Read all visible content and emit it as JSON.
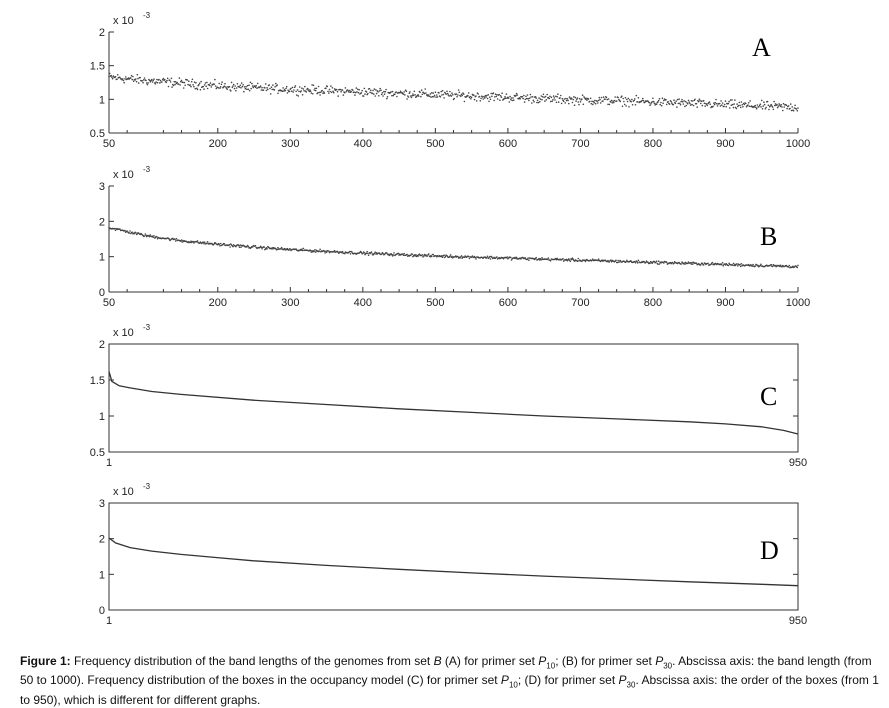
{
  "chart_data": [
    {
      "type": "scatter",
      "panel_label": "A",
      "exponent_label": "x 10",
      "exponent_power": "-3",
      "xlim": [
        50,
        1000
      ],
      "ylim": [
        0.5,
        2
      ],
      "x_tick_labels": [
        "50",
        "200",
        "300",
        "400",
        "500",
        "600",
        "700",
        "800",
        "900",
        "1000"
      ],
      "y_tick_labels": [
        "0.5",
        "1",
        "1.5",
        "2"
      ],
      "series": [
        {
          "x": [
            50,
            100,
            150,
            200,
            250,
            300,
            350,
            400,
            450,
            500,
            550,
            600,
            650,
            700,
            750,
            800,
            850,
            900,
            950,
            1000
          ],
          "values": [
            1.33,
            1.28,
            1.24,
            1.2,
            1.17,
            1.15,
            1.13,
            1.11,
            1.09,
            1.07,
            1.05,
            1.03,
            1.01,
            0.99,
            0.98,
            0.96,
            0.94,
            0.92,
            0.9,
            0.88
          ]
        }
      ],
      "spread": 0.1
    },
    {
      "type": "scatter",
      "panel_label": "B",
      "exponent_label": "x 10",
      "exponent_power": "-3",
      "xlim": [
        50,
        1000
      ],
      "ylim": [
        0,
        3
      ],
      "x_tick_labels": [
        "50",
        "200",
        "300",
        "400",
        "500",
        "600",
        "700",
        "800",
        "900",
        "1000"
      ],
      "y_tick_labels": [
        "0",
        "1",
        "2",
        "3"
      ],
      "series": [
        {
          "x": [
            50,
            100,
            150,
            200,
            250,
            300,
            350,
            400,
            450,
            500,
            550,
            600,
            650,
            700,
            750,
            800,
            850,
            900,
            950,
            1000
          ],
          "values": [
            1.82,
            1.6,
            1.45,
            1.35,
            1.27,
            1.2,
            1.15,
            1.1,
            1.06,
            1.02,
            0.99,
            0.96,
            0.93,
            0.9,
            0.87,
            0.84,
            0.81,
            0.78,
            0.75,
            0.72
          ]
        }
      ],
      "spread": 0.06
    },
    {
      "type": "line",
      "panel_label": "C",
      "exponent_label": "x 10",
      "exponent_power": "-3",
      "xlim": [
        1,
        950
      ],
      "ylim": [
        0.5,
        2
      ],
      "x_tick_labels": [
        "1",
        "950"
      ],
      "y_tick_labels": [
        "0.5",
        "1",
        "1.5",
        "2"
      ],
      "series": [
        {
          "x": [
            1,
            5,
            15,
            30,
            60,
            100,
            200,
            300,
            400,
            500,
            600,
            700,
            800,
            850,
            900,
            930,
            950
          ],
          "values": [
            1.62,
            1.48,
            1.42,
            1.39,
            1.34,
            1.3,
            1.22,
            1.16,
            1.1,
            1.05,
            1.0,
            0.96,
            0.92,
            0.89,
            0.85,
            0.8,
            0.75
          ]
        }
      ]
    },
    {
      "type": "line",
      "panel_label": "D",
      "exponent_label": "x 10",
      "exponent_power": "-3",
      "xlim": [
        1,
        950
      ],
      "ylim": [
        0,
        3
      ],
      "x_tick_labels": [
        "1",
        "950"
      ],
      "y_tick_labels": [
        "0",
        "1",
        "2",
        "3"
      ],
      "series": [
        {
          "x": [
            1,
            10,
            30,
            60,
            100,
            150,
            200,
            300,
            400,
            500,
            600,
            700,
            800,
            900,
            950
          ],
          "values": [
            2.02,
            1.88,
            1.75,
            1.65,
            1.56,
            1.47,
            1.38,
            1.25,
            1.14,
            1.04,
            0.95,
            0.87,
            0.79,
            0.72,
            0.68
          ]
        }
      ]
    }
  ],
  "caption": {
    "label": "Figure 1:",
    "part1": " Frequency distribution of the band lengths of the genomes from set ",
    "set_name": "B",
    "part2": " (A) for primer set ",
    "p": "P",
    "sub10": "10",
    "part3": "; (B) for primer set ",
    "sub30": "30",
    "part4": ". Abscissa axis: the band length (from 50 to 1000). Frequency distribution of the boxes in the occupancy model (C) for primer set ",
    "part5": "; (D) for primer set ",
    "part6": ". Abscissa axis: the order of the boxes (from 1 to 950), which is different for different graphs."
  }
}
